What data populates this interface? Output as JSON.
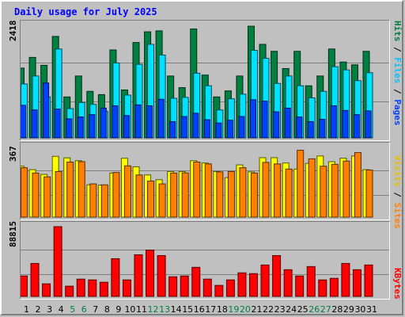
{
  "title": "Daily usage for July 2025",
  "chart_data": [
    {
      "type": "bar",
      "panel": "top",
      "ylabel": "2418",
      "ylim": [
        0,
        2418
      ],
      "categories": [
        "1",
        "2",
        "3",
        "4",
        "5",
        "6",
        "7",
        "8",
        "9",
        "10",
        "11",
        "12",
        "13",
        "14",
        "15",
        "16",
        "17",
        "18",
        "19",
        "20",
        "21",
        "22",
        "23",
        "24",
        "25",
        "26",
        "27",
        "28",
        "29",
        "30",
        "31"
      ],
      "weekend_days": [
        "5",
        "6",
        "12",
        "13",
        "19",
        "20",
        "26",
        "27"
      ],
      "right_label": [
        "Pages",
        "Files",
        "Hits"
      ],
      "series": [
        {
          "name": "Hits",
          "color": "#008040",
          "values": [
            1500,
            1730,
            1560,
            2180,
            880,
            1330,
            1000,
            930,
            1890,
            1030,
            2050,
            2280,
            2300,
            1330,
            1080,
            2340,
            1350,
            880,
            1010,
            1330,
            2400,
            2010,
            1860,
            1490,
            1860,
            1120,
            1330,
            1910,
            1630,
            1570,
            1860
          ]
        },
        {
          "name": "Files",
          "color": "#00e0ff",
          "values": [
            1160,
            1330,
            880,
            1910,
            630,
            760,
            720,
            570,
            1610,
            920,
            1580,
            2010,
            1780,
            850,
            870,
            1390,
            1120,
            600,
            840,
            940,
            1880,
            1710,
            1170,
            1330,
            1120,
            860,
            1000,
            1530,
            1460,
            1230,
            1400
          ]
        },
        {
          "name": "Pages",
          "color": "#0040ff",
          "values": [
            700,
            600,
            1180,
            620,
            410,
            450,
            500,
            640,
            690,
            480,
            710,
            690,
            830,
            350,
            460,
            530,
            390,
            320,
            380,
            460,
            820,
            790,
            560,
            640,
            450,
            350,
            400,
            690,
            590,
            500,
            580
          ]
        }
      ]
    },
    {
      "type": "bar",
      "panel": "middle",
      "ylabel": "367",
      "ylim": [
        0,
        367
      ],
      "categories": [
        "1",
        "2",
        "3",
        "4",
        "5",
        "6",
        "7",
        "8",
        "9",
        "10",
        "11",
        "12",
        "13",
        "14",
        "15",
        "16",
        "17",
        "18",
        "19",
        "20",
        "21",
        "22",
        "23",
        "24",
        "25",
        "26",
        "27",
        "28",
        "29",
        "30",
        "31"
      ],
      "right_label": [
        "Sites",
        "Visits"
      ],
      "series": [
        {
          "name": "Visits",
          "color": "#ffff00",
          "values": [
            268,
            250,
            225,
            320,
            312,
            297,
            170,
            169,
            232,
            310,
            265,
            222,
            197,
            240,
            240,
            297,
            285,
            240,
            208,
            275,
            238,
            313,
            313,
            285,
            253,
            283,
            322,
            292,
            310,
            322,
            250
          ]
        },
        {
          "name": "Sites",
          "color": "#ff8000",
          "values": [
            260,
            232,
            212,
            240,
            290,
            292,
            175,
            170,
            235,
            270,
            222,
            190,
            175,
            232,
            233,
            290,
            280,
            238,
            240,
            260,
            232,
            288,
            280,
            253,
            352,
            307,
            268,
            278,
            295,
            340,
            248
          ]
        }
      ]
    },
    {
      "type": "bar",
      "panel": "bottom",
      "ylabel": "88815",
      "ylim": [
        0,
        88815
      ],
      "categories": [
        "1",
        "2",
        "3",
        "4",
        "5",
        "6",
        "7",
        "8",
        "9",
        "10",
        "11",
        "12",
        "13",
        "14",
        "15",
        "16",
        "17",
        "18",
        "19",
        "20",
        "21",
        "22",
        "23",
        "24",
        "25",
        "26",
        "27",
        "28",
        "29",
        "30",
        "31"
      ],
      "right_label": [
        "KBytes"
      ],
      "series": [
        {
          "name": "KBytes",
          "color": "#ff0000",
          "values": [
            26000,
            42000,
            16000,
            88815,
            13000,
            22000,
            21000,
            18000,
            48000,
            21000,
            53000,
            59000,
            52000,
            25000,
            26000,
            37000,
            22000,
            14000,
            21000,
            30000,
            29000,
            40000,
            52000,
            34000,
            26000,
            38000,
            21000,
            23000,
            42000,
            34000,
            40000
          ]
        }
      ]
    }
  ]
}
